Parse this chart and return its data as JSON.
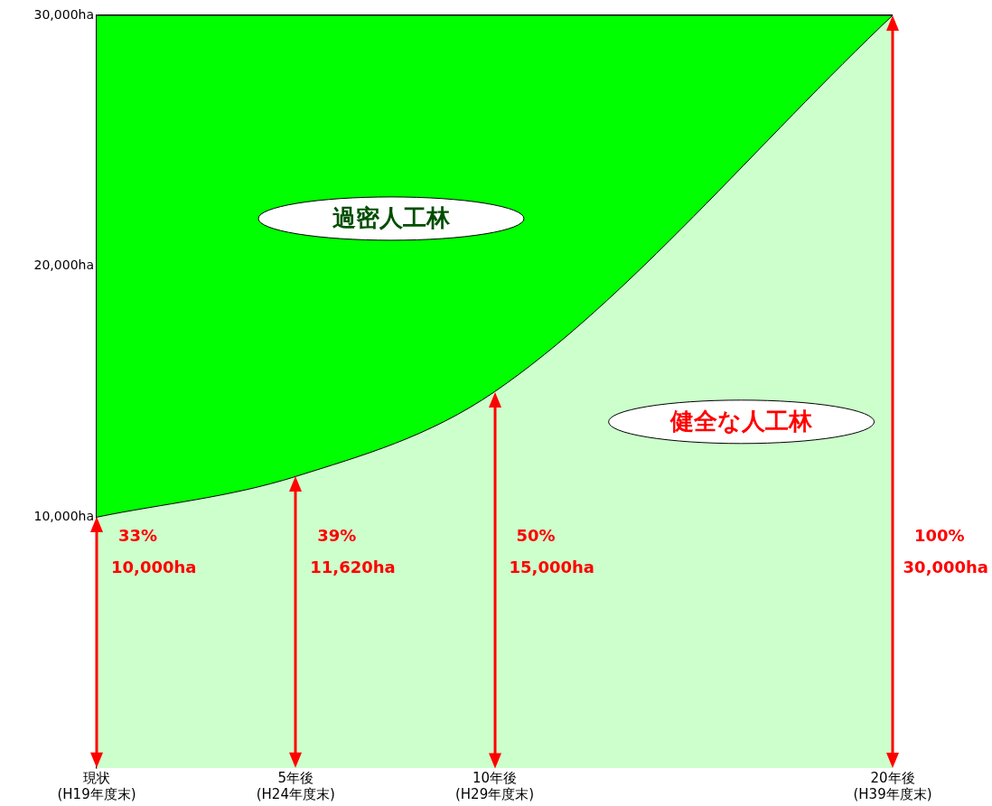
{
  "chart_data": {
    "type": "area",
    "stacked": true,
    "categories": [
      "現状\n(H19年度末)",
      "5年後\n(H24年度末)",
      "10年後\n(H29年度末)",
      null,
      "20年後\n(H39年度末)"
    ],
    "series": [
      {
        "name": "健全な人工林",
        "color": "#ccffcc",
        "values": [
          10000,
          11620,
          15000,
          null,
          30000
        ]
      },
      {
        "name": "過密人工林",
        "color": "#00ff00",
        "values": [
          20000,
          18380,
          15000,
          null,
          0
        ]
      }
    ],
    "ylim": [
      0,
      30000
    ],
    "yticks": [
      {
        "value": 10000,
        "label": "10,000ha"
      },
      {
        "value": 20000,
        "label": "20,000ha"
      },
      {
        "value": 30000,
        "label": "30,000ha"
      }
    ],
    "grid": "y",
    "legend": false,
    "annotations": [
      "33%",
      "10,000ha",
      "39%",
      "11,620ha",
      "50%",
      "15,000ha",
      "100%",
      "30,000ha"
    ]
  }
}
